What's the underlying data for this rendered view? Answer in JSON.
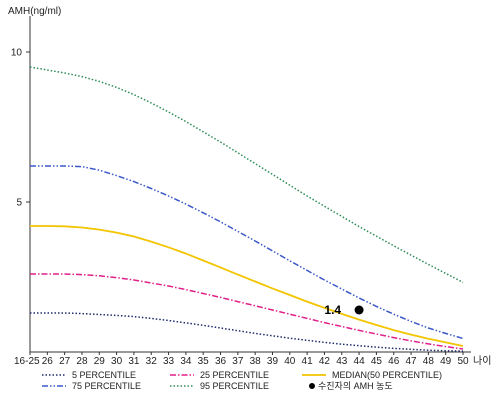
{
  "chart_data": {
    "type": "line",
    "ylabel": "AMH(ng/ml)",
    "xlabel": "나이",
    "categories": [
      "16-25",
      "26",
      "27",
      "28",
      "29",
      "30",
      "31",
      "32",
      "33",
      "34",
      "35",
      "36",
      "37",
      "38",
      "39",
      "40",
      "41",
      "42",
      "43",
      "44",
      "45",
      "46",
      "47",
      "48",
      "49",
      "50"
    ],
    "ylim": [
      0,
      11
    ],
    "yticks": [
      5,
      10
    ],
    "grid": false,
    "legend_position": "bottom",
    "series": [
      {
        "name": "5 PERCENTILE",
        "color": "#1f2a6b",
        "dash": "dotted",
        "values": [
          1.3,
          1.3,
          1.3,
          1.28,
          1.25,
          1.22,
          1.18,
          1.12,
          1.05,
          0.97,
          0.89,
          0.8,
          0.71,
          0.62,
          0.54,
          0.46,
          0.39,
          0.32,
          0.26,
          0.21,
          0.16,
          0.12,
          0.09,
          0.06,
          0.04,
          0.03
        ]
      },
      {
        "name": "25 PERCENTILE",
        "color": "#e0208a",
        "dash": "dashdot",
        "values": [
          2.6,
          2.6,
          2.6,
          2.58,
          2.54,
          2.48,
          2.4,
          2.3,
          2.2,
          2.08,
          1.95,
          1.82,
          1.68,
          1.54,
          1.4,
          1.26,
          1.12,
          0.98,
          0.85,
          0.72,
          0.6,
          0.48,
          0.37,
          0.27,
          0.18,
          0.1
        ]
      },
      {
        "name": "MEDIAN(50 PERCENTILE)",
        "color": "#f2c500",
        "dash": "solid",
        "values": [
          4.2,
          4.2,
          4.19,
          4.15,
          4.08,
          3.98,
          3.85,
          3.68,
          3.49,
          3.28,
          3.05,
          2.82,
          2.58,
          2.35,
          2.12,
          1.9,
          1.68,
          1.47,
          1.27,
          1.08,
          0.9,
          0.73,
          0.58,
          0.44,
          0.32,
          0.2
        ]
      },
      {
        "name": "75 PERCENTILE",
        "color": "#3a58c8",
        "dash": "dashdotdot",
        "values": [
          6.2,
          6.2,
          6.2,
          6.18,
          6.06,
          5.88,
          5.68,
          5.45,
          5.2,
          4.93,
          4.64,
          4.34,
          4.02,
          3.7,
          3.37,
          3.04,
          2.72,
          2.4,
          2.1,
          1.8,
          1.52,
          1.26,
          1.02,
          0.8,
          0.62,
          0.45
        ]
      },
      {
        "name": "95 PERCENTILE",
        "color": "#2e8b57",
        "dash": "dotted",
        "values": [
          9.5,
          9.4,
          9.3,
          9.18,
          9.02,
          8.82,
          8.58,
          8.3,
          8.0,
          7.68,
          7.34,
          7.0,
          6.64,
          6.28,
          5.92,
          5.56,
          5.2,
          4.86,
          4.52,
          4.18,
          3.86,
          3.54,
          3.23,
          2.92,
          2.62,
          2.32
        ]
      }
    ],
    "patient": {
      "name": "수진자의 AMH 농도",
      "x": "44",
      "y": 1.4,
      "label": "1.4"
    }
  }
}
